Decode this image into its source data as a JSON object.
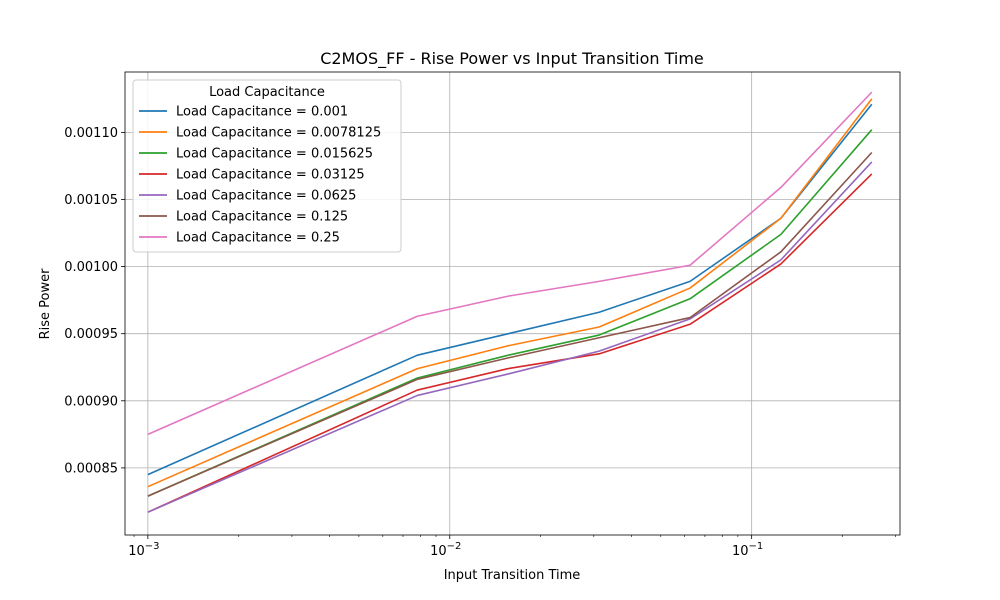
{
  "chart_data": {
    "type": "line",
    "title": "C2MOS_FF - Rise Power vs Input Transition Time",
    "xlabel": "Input Transition Time",
    "ylabel": "Rise Power",
    "xscale": "log",
    "xlim": [
      0.00084,
      0.31
    ],
    "ylim": [
      0.0008,
      0.001145
    ],
    "grid": true,
    "legend": {
      "title": "Load Capacitance",
      "placement": "upper-left"
    },
    "x": [
      0.001,
      0.0078125,
      0.015625,
      0.03125,
      0.0625,
      0.125,
      0.25
    ],
    "x_ticks": [
      {
        "value": 0.001,
        "label": "10",
        "exp": "−3"
      },
      {
        "value": 0.01,
        "label": "10",
        "exp": "−2"
      },
      {
        "value": 0.1,
        "label": "10",
        "exp": "−1"
      }
    ],
    "y_ticks": [
      {
        "value": 0.00085,
        "label": "0.00085"
      },
      {
        "value": 0.0009,
        "label": "0.00090"
      },
      {
        "value": 0.00095,
        "label": "0.00095"
      },
      {
        "value": 0.001,
        "label": "0.00100"
      },
      {
        "value": 0.00105,
        "label": "0.00105"
      },
      {
        "value": 0.0011,
        "label": "0.00110"
      }
    ],
    "series": [
      {
        "name": "Load Capacitance = 0.001",
        "color": "#1f77b4",
        "values": [
          0.000845,
          0.000934,
          0.00095,
          0.000966,
          0.000989,
          0.001036,
          0.001121
        ]
      },
      {
        "name": "Load Capacitance = 0.0078125",
        "color": "#ff7f0e",
        "values": [
          0.000836,
          0.000924,
          0.000941,
          0.000955,
          0.000984,
          0.001036,
          0.001125
        ]
      },
      {
        "name": "Load Capacitance = 0.015625",
        "color": "#2ca02c",
        "values": [
          0.000829,
          0.000917,
          0.000934,
          0.000949,
          0.000976,
          0.001024,
          0.001102
        ]
      },
      {
        "name": "Load Capacitance = 0.03125",
        "color": "#d62728",
        "values": [
          0.000817,
          0.000908,
          0.000924,
          0.000935,
          0.000957,
          0.001002,
          0.001069
        ]
      },
      {
        "name": "Load Capacitance = 0.0625",
        "color": "#9467bd",
        "values": [
          0.000817,
          0.000904,
          0.00092,
          0.000937,
          0.000961,
          0.001005,
          0.001078
        ]
      },
      {
        "name": "Load Capacitance = 0.125",
        "color": "#8c564b",
        "values": [
          0.000829,
          0.000916,
          0.000932,
          0.000947,
          0.000962,
          0.001011,
          0.001085
        ]
      },
      {
        "name": "Load Capacitance = 0.25",
        "color": "#e377c2",
        "values": [
          0.000875,
          0.000963,
          0.000978,
          0.000989,
          0.001001,
          0.001059,
          0.00113
        ]
      }
    ]
  }
}
